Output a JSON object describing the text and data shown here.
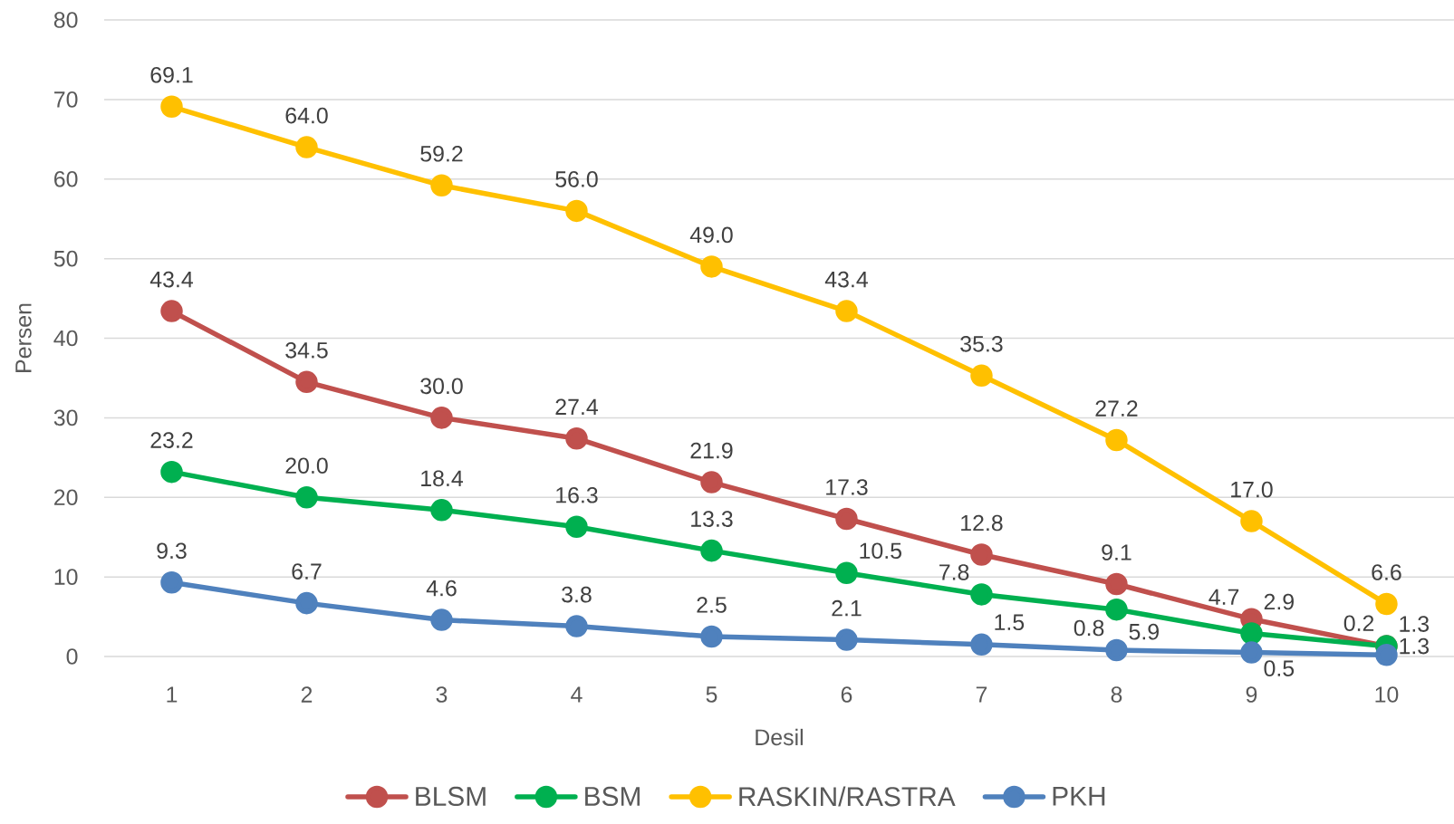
{
  "chart_data": {
    "type": "line",
    "xlabel": "Desil",
    "ylabel": "Persen",
    "categories": [
      "1",
      "2",
      "3",
      "4",
      "5",
      "6",
      "7",
      "8",
      "9",
      "10"
    ],
    "series": [
      {
        "name": "BLSM",
        "color": "#c0504d",
        "values": [
          43.4,
          34.5,
          30.0,
          27.4,
          21.9,
          17.3,
          12.8,
          9.1,
          4.7,
          1.3
        ],
        "value_labels": [
          "43.4",
          "34.5",
          "30.0",
          "27.4",
          "21.9",
          "17.3",
          "12.8",
          "9.1",
          "4.7",
          "1.3"
        ]
      },
      {
        "name": "BSM",
        "color": "#00b050",
        "values": [
          23.2,
          20.0,
          18.4,
          16.3,
          13.3,
          10.5,
          7.8,
          5.9,
          2.9,
          1.3
        ],
        "value_labels": [
          "23.2",
          "20.0",
          "18.4",
          "16.3",
          "13.3",
          "10.5",
          "7.8",
          "5.9",
          "2.9",
          "1.3"
        ]
      },
      {
        "name": "RASKIN/RASTRA",
        "color": "#ffc000",
        "values": [
          69.1,
          64.0,
          59.2,
          56.0,
          49.0,
          43.4,
          35.3,
          27.2,
          17.0,
          6.6
        ],
        "value_labels": [
          "69.1",
          "64.0",
          "59.2",
          "56.0",
          "49.0",
          "43.4",
          "35.3",
          "27.2",
          "17.0",
          "6.6"
        ]
      },
      {
        "name": "PKH",
        "color": "#4f81bd",
        "values": [
          9.3,
          6.7,
          4.6,
          3.8,
          2.5,
          2.1,
          1.5,
          0.8,
          0.5,
          0.2
        ],
        "value_labels": [
          "9.3",
          "6.7",
          "4.6",
          "3.8",
          "2.5",
          "2.1",
          "1.5",
          "0.8",
          "0.5",
          "0.2"
        ]
      }
    ],
    "ylim": [
      0,
      80
    ],
    "yticks": [
      0,
      10,
      20,
      30,
      40,
      50,
      60,
      70,
      80
    ],
    "grid": "y",
    "legend": "bottom",
    "marker": "circle",
    "line_style": "solid"
  }
}
